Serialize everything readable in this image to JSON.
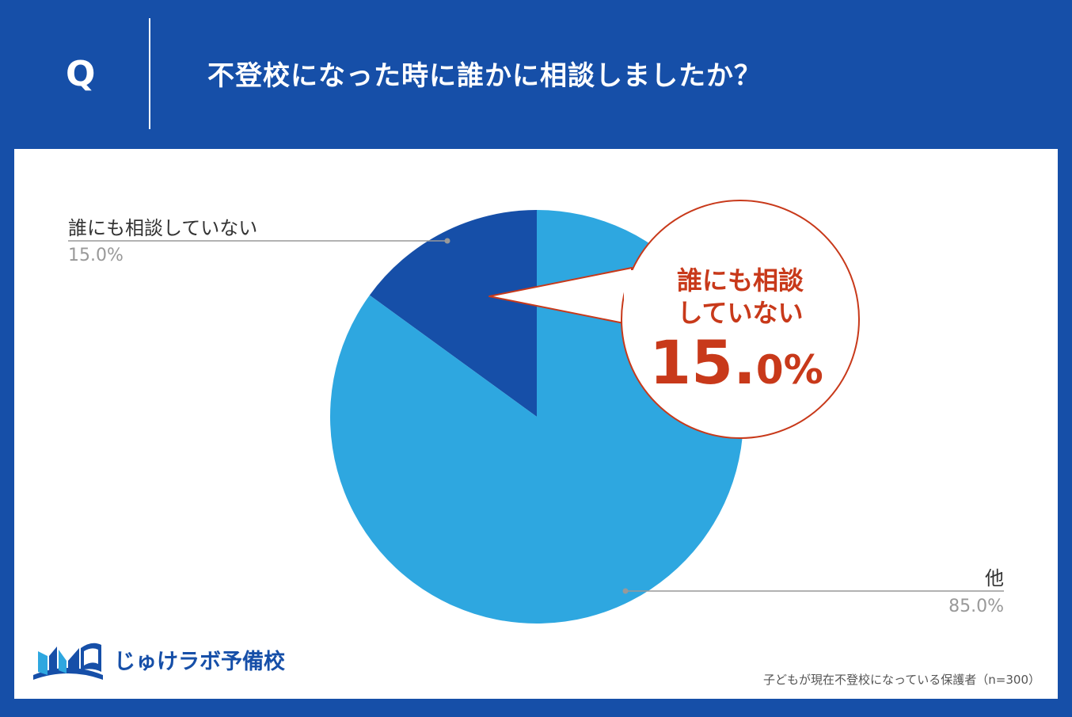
{
  "header": {
    "q_label": "Q",
    "question": "不登校になった時に誰かに相談しましたか？"
  },
  "chart_data": {
    "type": "pie",
    "categories": [
      "誰にも相談していない",
      "他"
    ],
    "values": [
      15.0,
      85.0
    ],
    "value_labels": [
      "15.0%",
      "85.0%"
    ],
    "colors": [
      "#164fa8",
      "#2ea7e0"
    ],
    "start_angle_deg": 0,
    "direction": "counterclockwise",
    "callout": {
      "line1": "誰にも相談",
      "line2": "していない",
      "value_big": "15.",
      "value_small": "0%",
      "color": "#c8391a"
    }
  },
  "footnote": "子どもが現在不登校になっている保護者（n=300）",
  "logo": {
    "text": "じゅけラボ予備校"
  },
  "colors": {
    "background": "#164fa8",
    "panel": "#ffffff",
    "leader_line": "#999999",
    "label_text": "#333333",
    "value_text": "#999999"
  }
}
